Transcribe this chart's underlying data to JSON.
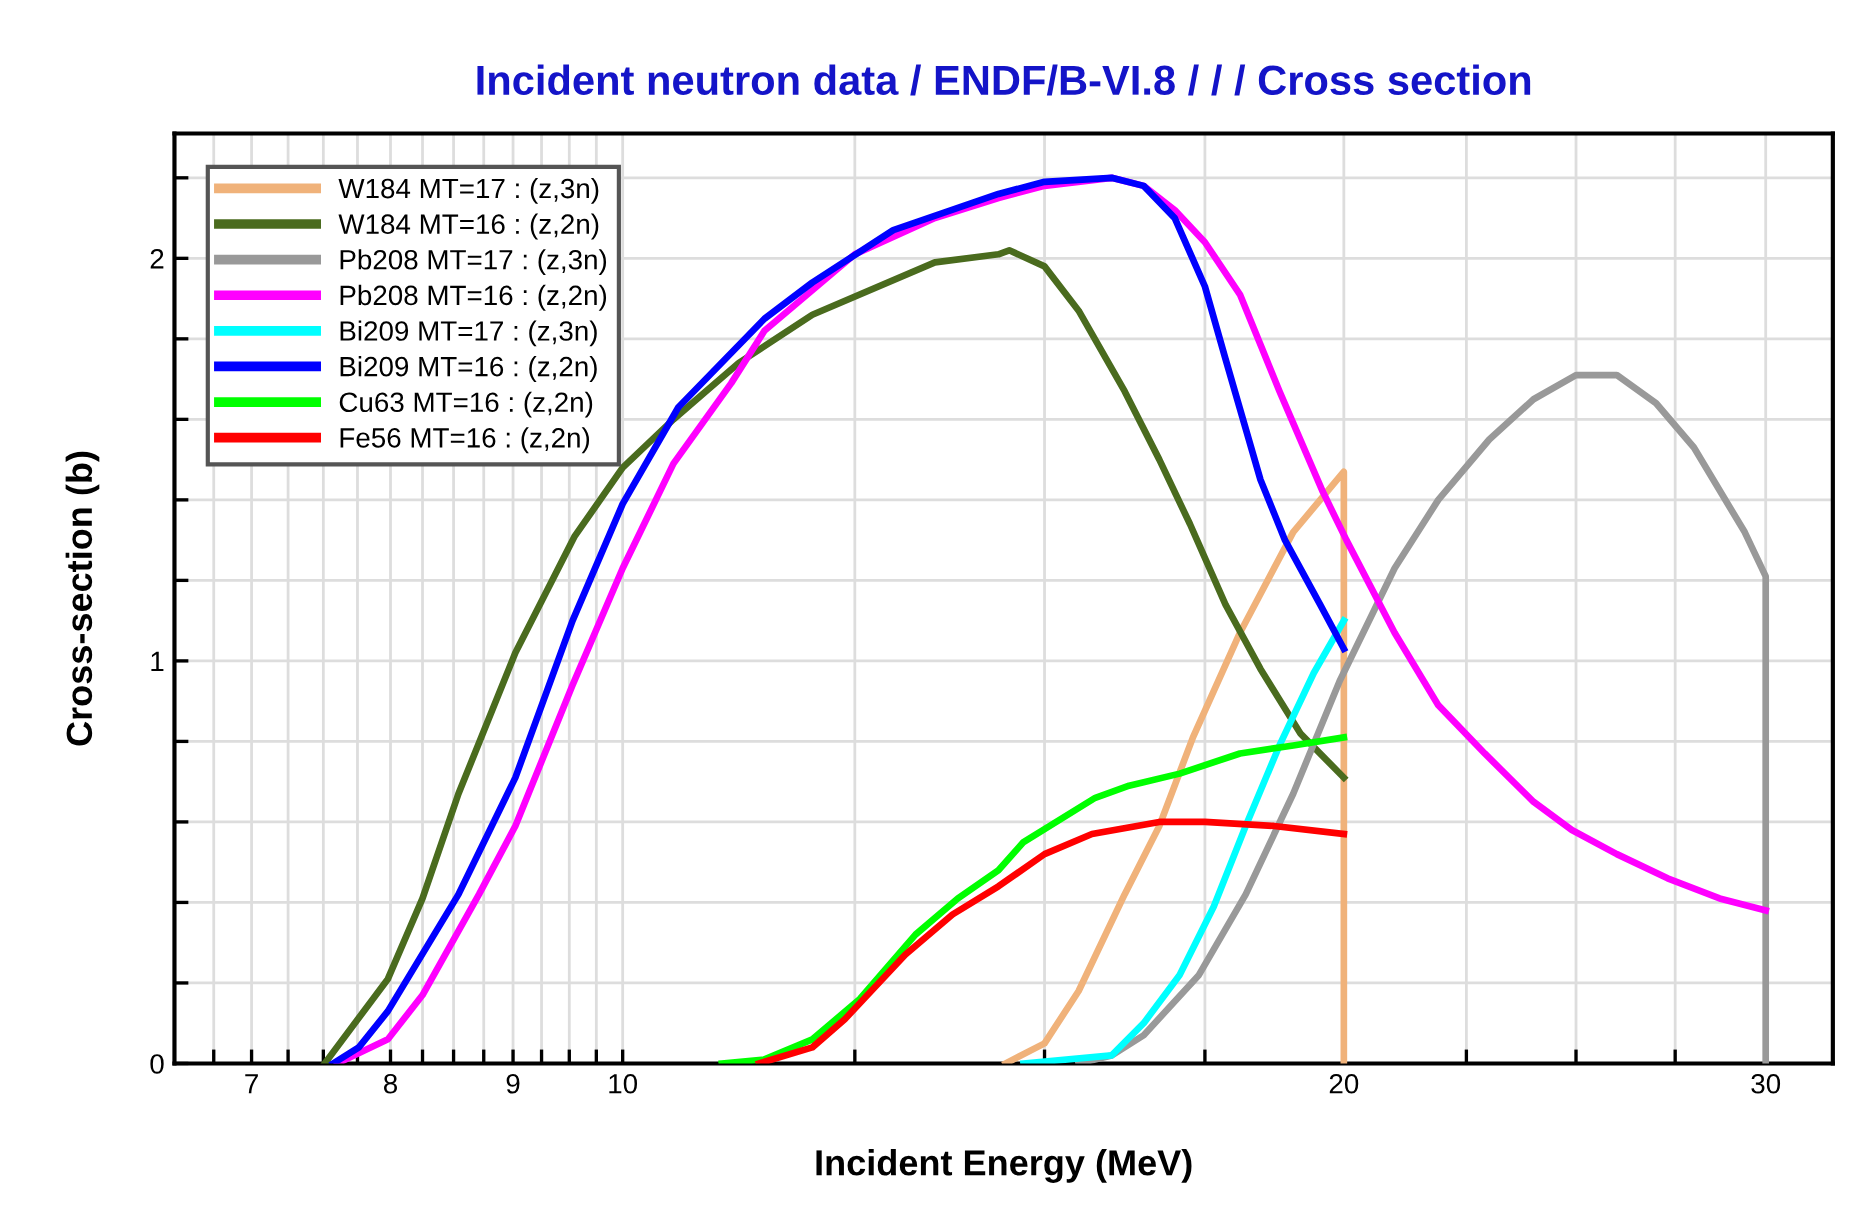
{
  "chart_data": {
    "type": "line",
    "title": "Incident neutron data / ENDF/B-VI.8 / / / Cross section",
    "xlabel": "Incident Energy (MeV)",
    "ylabel": "Cross-section (b)",
    "log": "x",
    "grid": true,
    "legend": "top left",
    "marker": "none",
    "line_style": "solid",
    "xlim": [
      6.5,
      32
    ],
    "ylim": [
      0,
      2.31
    ],
    "xticks": [
      {
        "value": 6.75,
        "label": null
      },
      7,
      {
        "value": 7.25,
        "label": null
      },
      {
        "value": 7.5,
        "label": null
      },
      {
        "value": 7.75,
        "label": null
      },
      8,
      {
        "value": 8.25,
        "label": null
      },
      {
        "value": 8.5,
        "label": null
      },
      {
        "value": 8.75,
        "label": null
      },
      9,
      {
        "value": 9.25,
        "label": null
      },
      {
        "value": 9.5,
        "label": null
      },
      {
        "value": 9.75,
        "label": null
      },
      10,
      {
        "value": 12.5,
        "label": null
      },
      {
        "value": 15,
        "label": null
      },
      {
        "value": 17.5,
        "label": null
      },
      20,
      {
        "value": 22.5,
        "label": null
      },
      {
        "value": 25,
        "label": null
      },
      {
        "value": 27.5,
        "label": null
      },
      30
    ],
    "yticks": [
      0,
      {
        "value": 0.2,
        "label": null
      },
      {
        "value": 0.4,
        "label": null
      },
      {
        "value": 0.6,
        "label": null
      },
      {
        "value": 0.8,
        "label": null
      },
      1,
      {
        "value": 1.2,
        "label": null
      },
      {
        "value": 1.4,
        "label": null
      },
      {
        "value": 1.6,
        "label": null
      },
      {
        "value": 1.8,
        "label": null
      },
      2,
      {
        "value": 2.2,
        "label": null
      }
    ],
    "series": [
      {
        "name": "W184 MT=17 : (z,3n)",
        "color": "#f0b27a",
        "x": [
          14.45,
          15.0,
          15.5,
          16.2,
          16.75,
          17.3,
          18.1,
          19.05,
          20.0,
          20.0
        ],
        "values": [
          0,
          0.05,
          0.18,
          0.42,
          0.59,
          0.81,
          1.07,
          1.32,
          1.47,
          0
        ]
      },
      {
        "name": "W184 MT=16 : (z,2n)",
        "color": "#4a6b1e",
        "x": [
          7.51,
          7.98,
          8.25,
          8.54,
          9.02,
          9.55,
          10,
          10.5,
          11.18,
          12.0,
          13.5,
          14.35,
          14.5,
          15.0,
          15.5,
          16.2,
          16.75,
          17.25,
          17.85,
          18.46,
          19.18,
          20.0
        ],
        "values": [
          0,
          0.21,
          0.41,
          0.67,
          1.02,
          1.31,
          1.48,
          1.6,
          1.74,
          1.86,
          1.99,
          2.01,
          2.02,
          1.98,
          1.87,
          1.67,
          1.5,
          1.34,
          1.14,
          0.98,
          0.82,
          0.71
        ]
      },
      {
        "name": "Pb208 MT=17 : (z,3n)",
        "color": "#999999",
        "x": [
          15.5,
          16.0,
          16.5,
          17.4,
          18.2,
          19.05,
          19.92,
          21.0,
          21.9,
          23.0,
          24.0,
          25.0,
          26.0,
          27.0,
          28.0,
          29.4,
          30.0,
          30.0
        ],
        "values": [
          0,
          0.02,
          0.07,
          0.22,
          0.42,
          0.67,
          0.95,
          1.23,
          1.4,
          1.55,
          1.65,
          1.71,
          1.71,
          1.64,
          1.53,
          1.32,
          1.21,
          0
        ]
      },
      {
        "name": "Pb208 MT=16 : (z,2n)",
        "color": "#ff00ff",
        "x": [
          7.6,
          7.98,
          8.25,
          8.71,
          9.02,
          9.53,
          10,
          10.5,
          11.1,
          11.46,
          12.5,
          13.5,
          14.35,
          15,
          16,
          16.5,
          17.0,
          17.5,
          18.1,
          18.8,
          19.6,
          20.05,
          21.0,
          21.9,
          22.9,
          24.0,
          24.9,
          26.0,
          27.3,
          28.7,
          30.0
        ],
        "values": [
          0,
          0.06,
          0.17,
          0.42,
          0.59,
          0.94,
          1.23,
          1.49,
          1.69,
          1.82,
          2.01,
          2.1,
          2.15,
          2.18,
          2.2,
          2.18,
          2.12,
          2.04,
          1.91,
          1.67,
          1.42,
          1.3,
          1.07,
          0.89,
          0.77,
          0.65,
          0.58,
          0.52,
          0.46,
          0.41,
          0.38
        ]
      },
      {
        "name": "Bi209 MT=17 : (z,3n)",
        "color": "#00ffff",
        "x": [
          14.7,
          16.0,
          16.5,
          17.08,
          17.65,
          18.2,
          18.8,
          19.43,
          20.0
        ],
        "values": [
          0,
          0.02,
          0.1,
          0.22,
          0.39,
          0.59,
          0.79,
          0.97,
          1.1
        ]
      },
      {
        "name": "Bi209 MT=16 : (z,2n)",
        "color": "#0000ff",
        "x": [
          7.57,
          7.76,
          7.98,
          8.54,
          9.02,
          9.53,
          10,
          10.55,
          11.46,
          12.0,
          12.97,
          14.35,
          15.0,
          16.0,
          16.5,
          17.0,
          17.5,
          17.85,
          18.46,
          18.9,
          19.55,
          20.0
        ],
        "values": [
          0,
          0.04,
          0.13,
          0.42,
          0.71,
          1.1,
          1.39,
          1.63,
          1.85,
          1.94,
          2.07,
          2.16,
          2.19,
          2.2,
          2.18,
          2.1,
          1.93,
          1.75,
          1.45,
          1.3,
          1.14,
          1.03
        ]
      },
      {
        "name": "Cu63 MT=16 : (z,2n)",
        "color": "#00ff00",
        "x": [
          11.0,
          11.46,
          12.0,
          12.56,
          13.25,
          13.8,
          14.35,
          14.7,
          15.75,
          16.27,
          17.08,
          18.1,
          19.05,
          20.0
        ],
        "values": [
          0,
          0.01,
          0.06,
          0.16,
          0.32,
          0.41,
          0.48,
          0.55,
          0.66,
          0.69,
          0.72,
          0.77,
          0.79,
          0.81
        ]
      },
      {
        "name": "Fe56 MT=16 : (z,2n)",
        "color": "#ff0000",
        "x": [
          11.4,
          12.0,
          12.38,
          13.12,
          13.73,
          14.35,
          15,
          15.7,
          16.75,
          17.5,
          18.7,
          20.0
        ],
        "values": [
          0,
          0.04,
          0.11,
          0.27,
          0.37,
          0.44,
          0.52,
          0.57,
          0.6,
          0.6,
          0.59,
          0.57
        ]
      }
    ]
  }
}
